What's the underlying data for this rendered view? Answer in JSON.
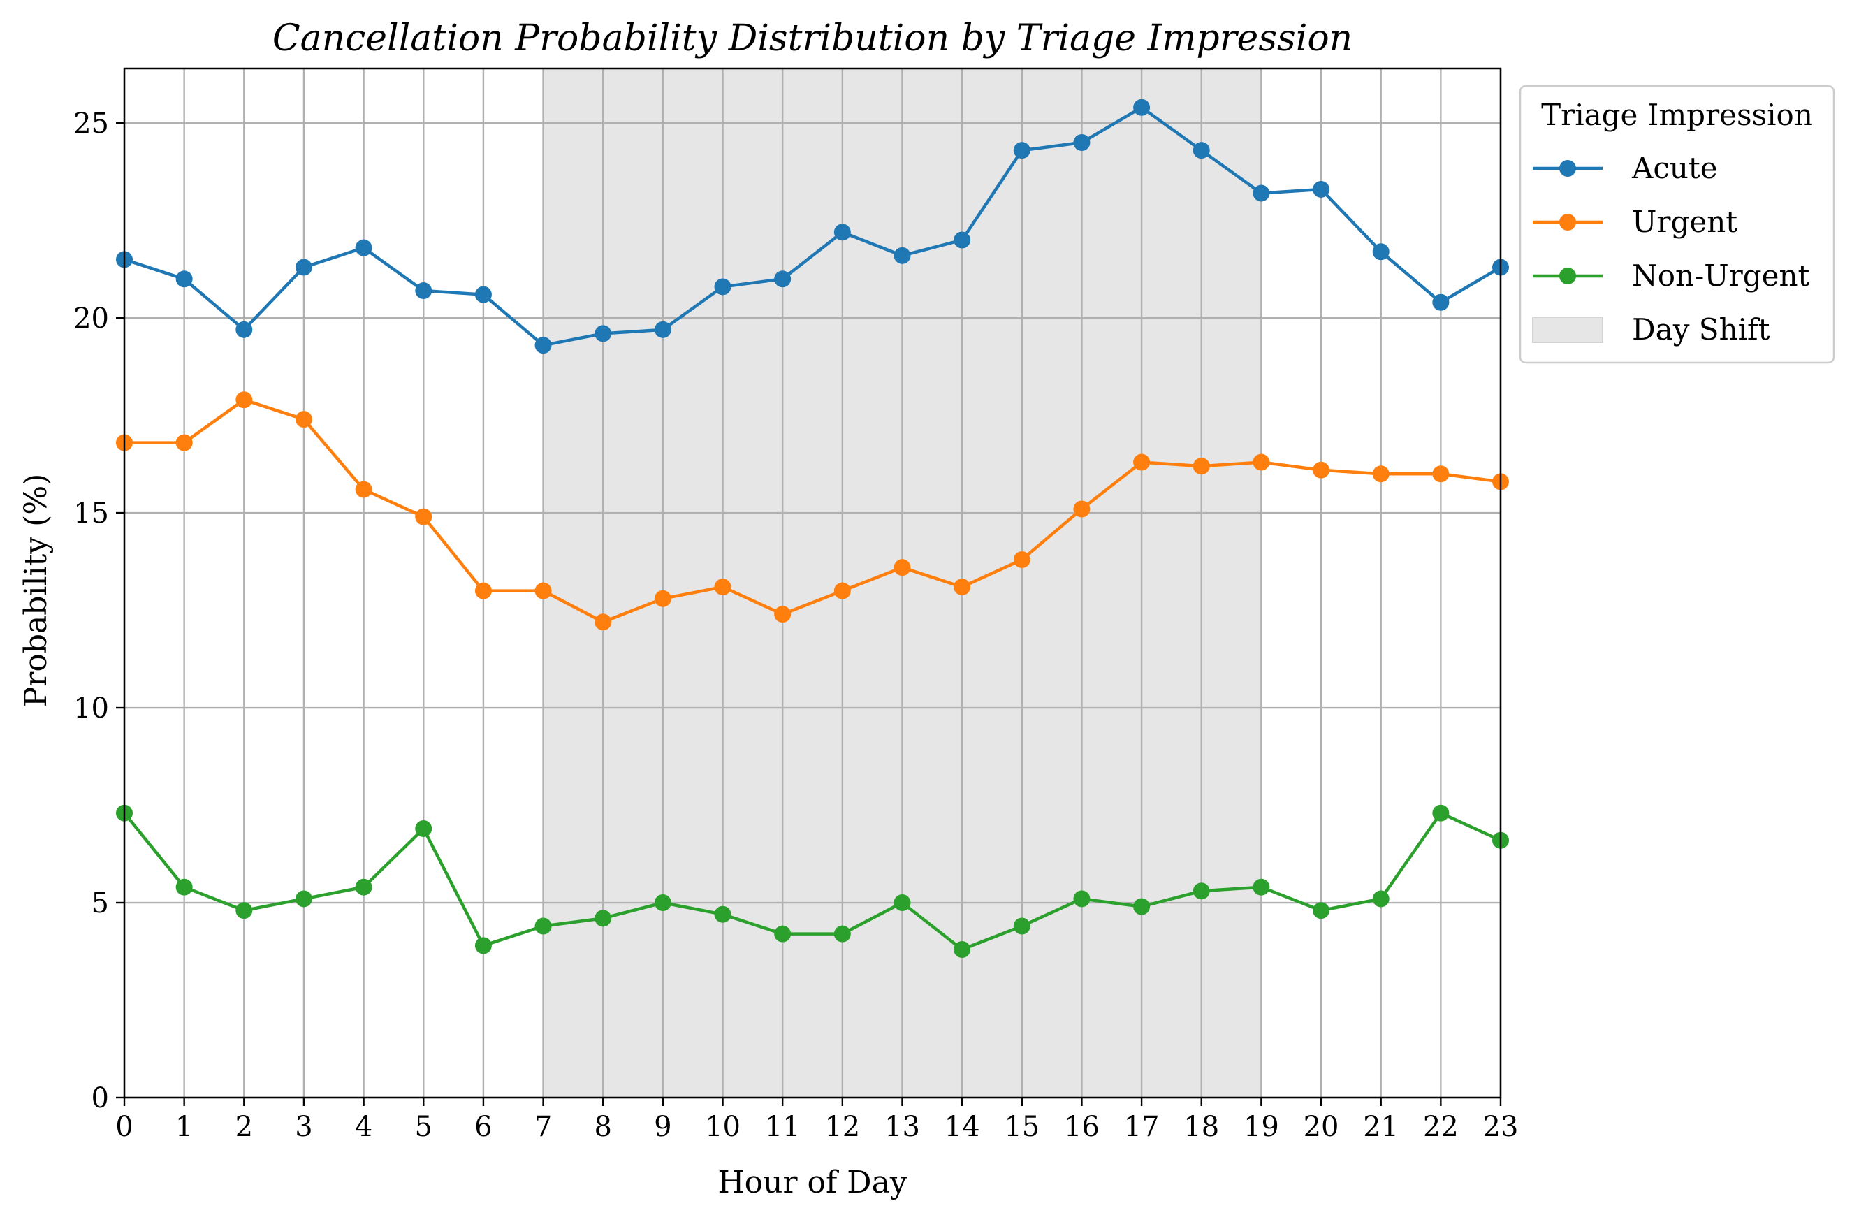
{
  "chart_data": {
    "type": "line",
    "title": "Cancellation Probability Distribution by Triage Impression",
    "xlabel": "Hour of Day",
    "ylabel": "Probability (%)",
    "x": [
      0,
      1,
      2,
      3,
      4,
      5,
      6,
      7,
      8,
      9,
      10,
      11,
      12,
      13,
      14,
      15,
      16,
      17,
      18,
      19,
      20,
      21,
      22,
      23
    ],
    "x_ticks": [
      "0",
      "1",
      "2",
      "3",
      "4",
      "5",
      "6",
      "7",
      "8",
      "9",
      "10",
      "11",
      "12",
      "13",
      "14",
      "15",
      "16",
      "17",
      "18",
      "19",
      "20",
      "21",
      "22",
      "23"
    ],
    "y_ticks": [
      "0",
      "5",
      "10",
      "15",
      "20",
      "25"
    ],
    "xlim": [
      0,
      23
    ],
    "ylim": [
      0,
      26.4
    ],
    "grid": true,
    "legend": {
      "title": "Triage Impression",
      "placement": "outside-top-right"
    },
    "series": [
      {
        "name": "Acute",
        "color": "#1f77b4",
        "values": [
          21.5,
          21.0,
          19.7,
          21.3,
          21.8,
          20.7,
          20.6,
          19.3,
          19.6,
          19.7,
          20.8,
          21.0,
          22.2,
          21.6,
          22.0,
          24.3,
          24.5,
          25.4,
          24.3,
          23.2,
          23.3,
          21.7,
          20.4,
          21.3
        ]
      },
      {
        "name": "Urgent",
        "color": "#ff7f0e",
        "values": [
          16.8,
          16.8,
          17.9,
          17.4,
          15.6,
          14.9,
          13.0,
          13.0,
          12.2,
          12.8,
          13.1,
          12.4,
          13.0,
          13.6,
          13.1,
          13.8,
          15.1,
          16.3,
          16.2,
          16.3,
          16.1,
          16.0,
          16.0,
          15.8
        ]
      },
      {
        "name": "Non-Urgent",
        "color": "#2ca02c",
        "values": [
          7.3,
          5.4,
          4.8,
          5.1,
          5.4,
          6.9,
          3.9,
          4.4,
          4.6,
          5.0,
          4.7,
          4.2,
          4.2,
          5.0,
          3.8,
          4.4,
          5.1,
          4.9,
          5.3,
          5.4,
          4.8,
          5.1,
          7.3,
          6.6
        ]
      }
    ],
    "shaded_region": {
      "name": "Day Shift",
      "x_start": 7,
      "x_end": 19,
      "color": "#e6e6e6"
    }
  }
}
